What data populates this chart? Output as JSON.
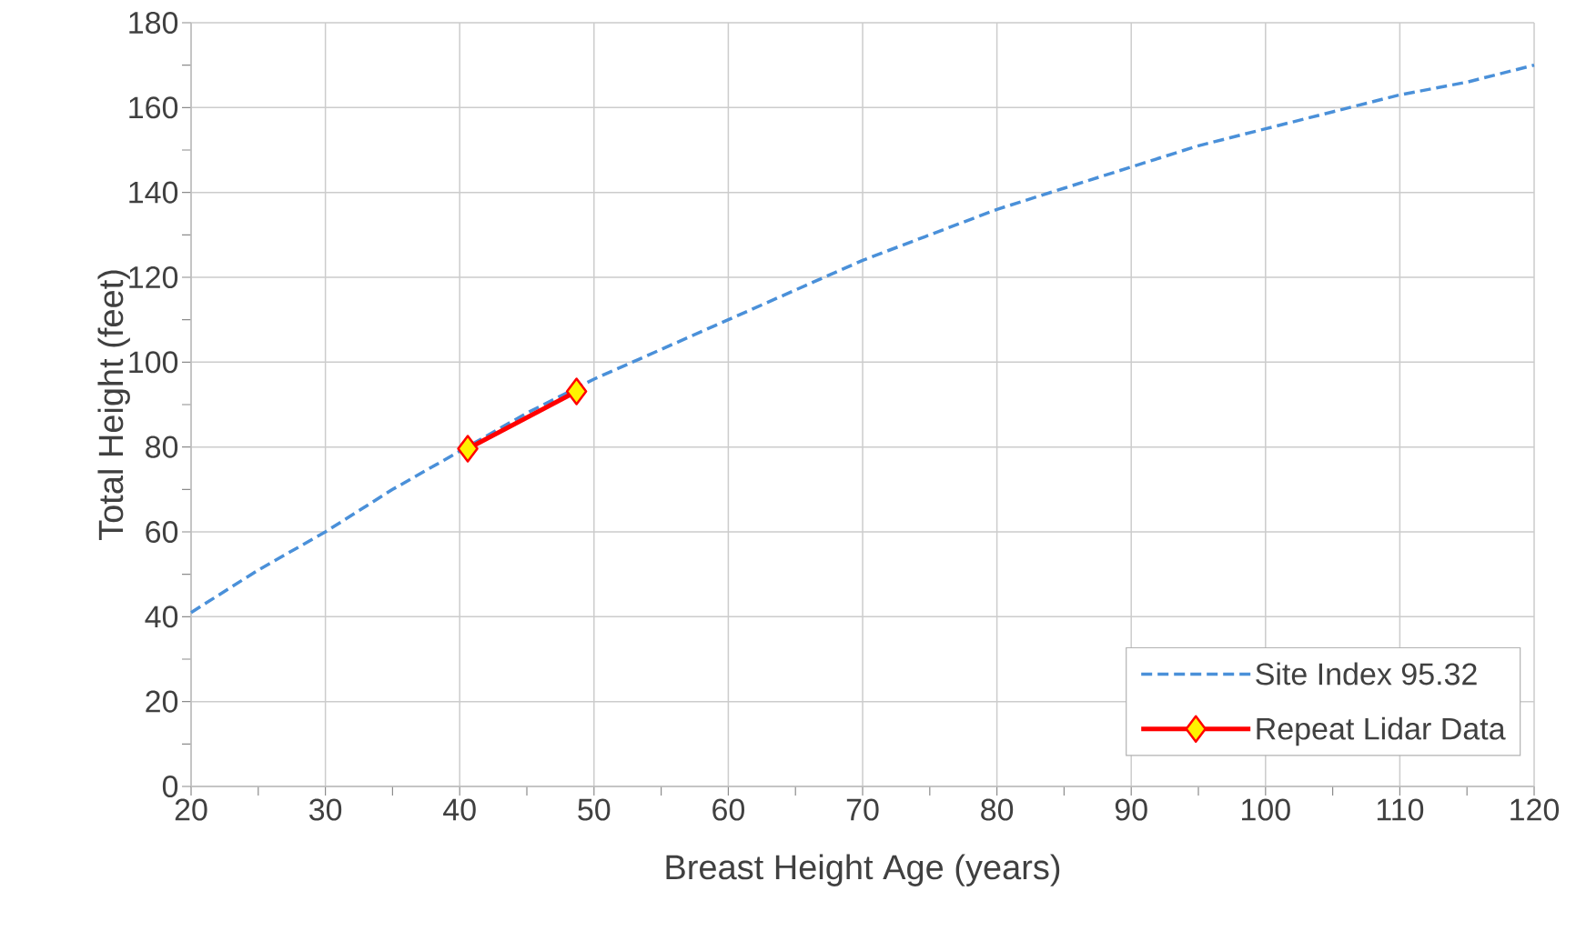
{
  "chart_data": {
    "type": "line",
    "xlabel": "Breast Height Age (years)",
    "ylabel": "Total Height (feet)",
    "xlim": [
      20,
      120
    ],
    "xticks": [
      20,
      30,
      40,
      50,
      60,
      70,
      80,
      90,
      100,
      110,
      120
    ],
    "ylim": [
      0,
      180
    ],
    "yticks": [
      0,
      20,
      40,
      60,
      80,
      100,
      120,
      140,
      160,
      180
    ],
    "grid": true,
    "legend": "bottom right",
    "series": [
      {
        "name": "Site Index 95.32",
        "color": "#4a90d9",
        "line_style": "dashed",
        "marker": "none",
        "x": [
          20,
          25,
          30,
          35,
          40,
          45,
          50,
          55,
          60,
          65,
          70,
          75,
          80,
          85,
          90,
          95,
          100,
          105,
          110,
          115,
          120
        ],
        "values": [
          41,
          51,
          60,
          70,
          79,
          88,
          96,
          103,
          110,
          117,
          124,
          130,
          136,
          141,
          146,
          151,
          155,
          159,
          163,
          166,
          170
        ]
      },
      {
        "name": "Repeat Lidar Data",
        "color": "#ff0000",
        "line_style": "solid",
        "marker": "diamond",
        "x": [
          40.6,
          48.7
        ],
        "values": [
          79.6,
          93.1
        ]
      }
    ]
  }
}
